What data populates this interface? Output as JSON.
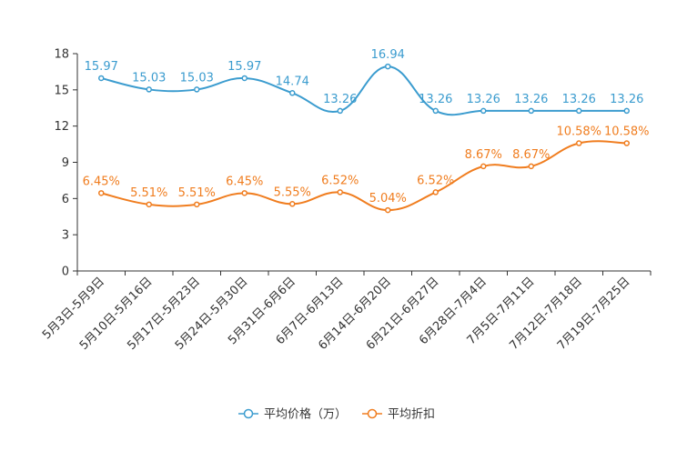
{
  "chart_data": {
    "type": "line",
    "title": "",
    "xlabel": "",
    "ylabel": "",
    "ylim": [
      0,
      18
    ],
    "yticks": [
      0,
      3,
      6,
      9,
      12,
      15,
      18
    ],
    "categories": [
      "5月3日-5月9日",
      "5月10日-5月16日",
      "5月17日-5月23日",
      "5月24日-5月30日",
      "5月31日-6月6日",
      "6月7日-6月13日",
      "6月14日-6月20日",
      "6月21日-6月27日",
      "6月28日-7月4日",
      "7月5日-7月11日",
      "7月12日-7月18日",
      "7月19日-7月25日"
    ],
    "series": [
      {
        "name": "平均价格（万）",
        "color": "#3b9ccf",
        "values": [
          15.97,
          15.03,
          15.03,
          15.97,
          14.74,
          13.26,
          16.94,
          13.26,
          13.26,
          13.26,
          13.26,
          13.26
        ],
        "labels": [
          "15.97",
          "15.03",
          "15.03",
          "15.97",
          "14.74",
          "13.26",
          "16.94",
          "13.26",
          "13.26",
          "13.26",
          "13.26",
          "13.26"
        ]
      },
      {
        "name": "平均折扣",
        "color": "#f07d1f",
        "values": [
          6.45,
          5.51,
          5.51,
          6.45,
          5.55,
          6.52,
          5.04,
          6.52,
          8.67,
          8.67,
          10.58,
          10.58
        ],
        "labels": [
          "6.45%",
          "5.51%",
          "5.51%",
          "6.45%",
          "5.55%",
          "6.52%",
          "5.04%",
          "6.52%",
          "8.67%",
          "8.67%",
          "10.58%",
          "10.58%"
        ]
      }
    ],
    "legend_position": "bottom-center",
    "grid": false
  }
}
